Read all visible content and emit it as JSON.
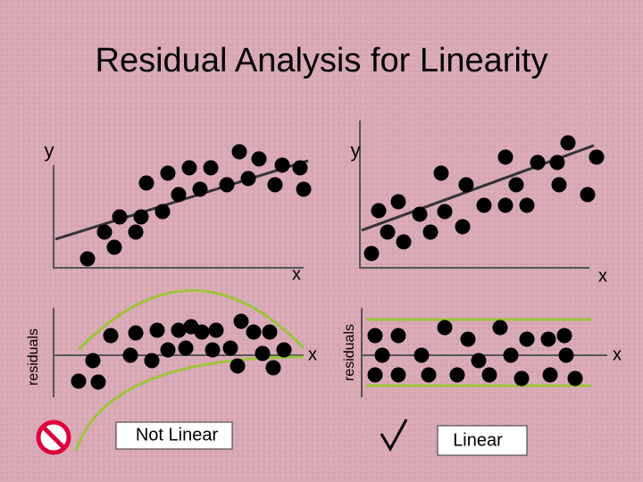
{
  "title": "Residual Analysis for Linearity",
  "panels": [
    {
      "y_label": "y",
      "x_label": "x"
    },
    {
      "y_label": "y",
      "x_label": "x"
    },
    {
      "y_label": "residuals",
      "x_label": "x",
      "verdict": "Not Linear"
    },
    {
      "y_label": "residuals",
      "x_label": "x",
      "verdict": "Linear"
    }
  ]
}
